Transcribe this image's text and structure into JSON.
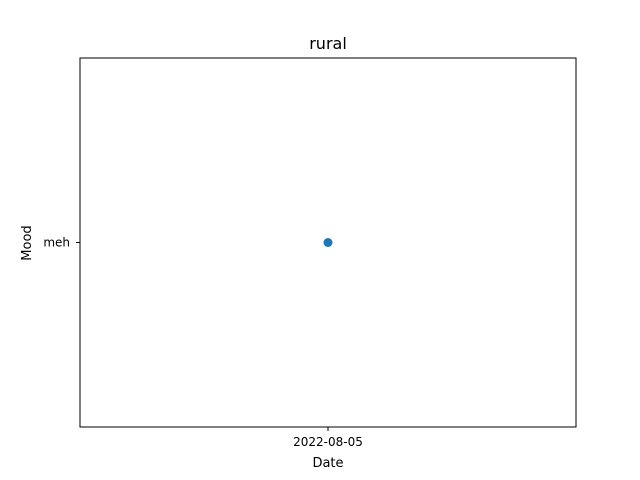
{
  "chart_data": {
    "type": "scatter",
    "title": "rural",
    "xlabel": "Date",
    "ylabel": "Mood",
    "x_categories": [
      "2022-08-05"
    ],
    "y_categories": [
      "meh"
    ],
    "points": [
      {
        "x": "2022-08-05",
        "y": "meh"
      }
    ],
    "grid": false,
    "color": "#1f77b4"
  }
}
